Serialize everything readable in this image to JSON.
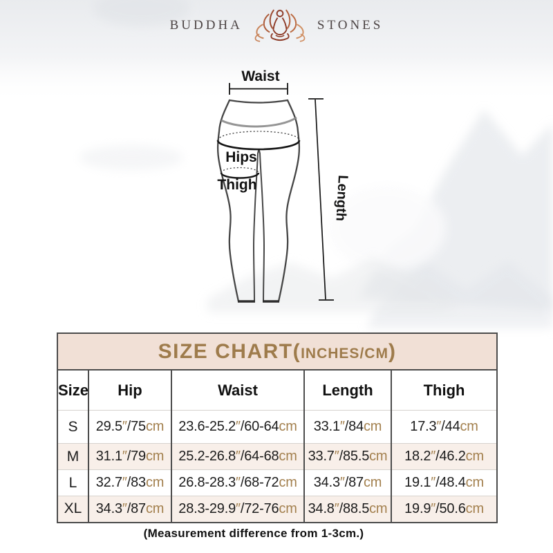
{
  "brand": {
    "word_left": "BUDDHA",
    "word_right": "STONES",
    "icon": "lotus-meditation-icon"
  },
  "diagram": {
    "waist_label": "Waist",
    "hips_label": "Hips",
    "thigh_label": "Thigh",
    "length_label": "Length"
  },
  "size_chart": {
    "title_main": "SIZE CHART(",
    "title_units": "INCHES/CM",
    "title_close": ")",
    "columns": [
      "Size",
      "Hip",
      "Waist",
      "Length",
      "Thigh"
    ],
    "unit_inch_mark": "″",
    "unit_cm": "cm",
    "slash": "/",
    "rows": [
      {
        "size": "S",
        "hip": {
          "in": "29.5",
          "cm": "75"
        },
        "waist": {
          "in": "23.6-25.2",
          "cm": "60-64"
        },
        "length": {
          "in": "33.1",
          "cm": "84"
        },
        "thigh": {
          "in": "17.3",
          "cm": "44"
        }
      },
      {
        "size": "M",
        "hip": {
          "in": "31.1",
          "cm": "79"
        },
        "waist": {
          "in": "25.2-26.8",
          "cm": "64-68"
        },
        "length": {
          "in": "33.7",
          "cm": "85.5"
        },
        "thigh": {
          "in": "18.2",
          "cm": "46.2"
        }
      },
      {
        "size": "L",
        "hip": {
          "in": "32.7",
          "cm": "83"
        },
        "waist": {
          "in": "26.8-28.3",
          "cm": "68-72"
        },
        "length": {
          "in": "34.3",
          "cm": "87"
        },
        "thigh": {
          "in": "19.1",
          "cm": "48.4"
        }
      },
      {
        "size": "XL",
        "hip": {
          "in": "34.3",
          "cm": "87"
        },
        "waist": {
          "in": "28.3-29.9",
          "cm": "72-76"
        },
        "length": {
          "in": "34.8",
          "cm": "88.5"
        },
        "thigh": {
          "in": "19.9",
          "cm": "50.6"
        }
      }
    ],
    "note": "(Measurement difference from 1-3cm.)"
  },
  "colors": {
    "accent_gold": "#9e7b4b",
    "unit_text": "#a3804e",
    "title_bar_bg": "#f1e0d6",
    "row_alt_bg": "#f8efe9",
    "table_border": "#4c4c4c",
    "row_line": "#d6d2ce",
    "brand_text": "#4c4444",
    "data_text": "#1c1c1c",
    "lotus_dark": "#96432d",
    "lotus_light": "#c9845a"
  }
}
